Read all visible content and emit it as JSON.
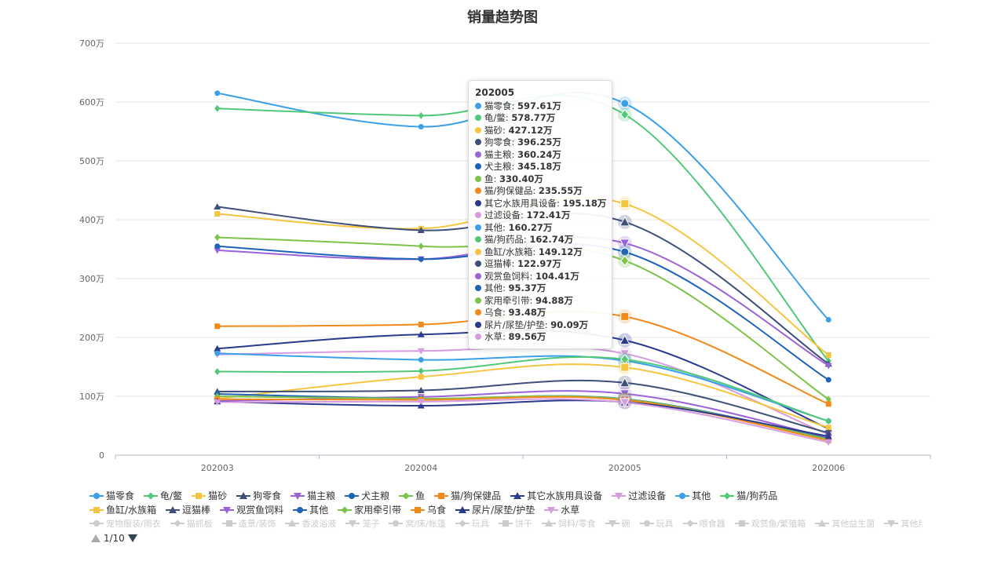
{
  "chart_data": {
    "type": "line",
    "title": "销量趋势图",
    "x": [
      "202003",
      "202004",
      "202005",
      "202006"
    ],
    "y_ticks": [
      "0",
      "100万",
      "200万",
      "300万",
      "400万",
      "500万",
      "600万",
      "700万"
    ],
    "ylim": [
      0,
      700
    ],
    "unit": "万",
    "grid": true,
    "smooth": true,
    "series": [
      {
        "name": "猫零食",
        "color": "#3ba0e8",
        "marker": "circle",
        "values": [
          615,
          558,
          597.61,
          230
        ]
      },
      {
        "name": "龟/鳖",
        "color": "#50c878",
        "marker": "diamond",
        "values": [
          589,
          577,
          578.77,
          160
        ]
      },
      {
        "name": "猫砂",
        "color": "#f5c542",
        "marker": "square",
        "values": [
          410,
          385,
          427.12,
          170
        ]
      },
      {
        "name": "狗零食",
        "color": "#3d4f7a",
        "marker": "triangle",
        "values": [
          422,
          382,
          396.25,
          155
        ]
      },
      {
        "name": "猫主粮",
        "color": "#9a63d8",
        "marker": "triangle-down",
        "values": [
          348,
          333,
          360.24,
          152
        ]
      },
      {
        "name": "犬主粮",
        "color": "#1e63b8",
        "marker": "circle",
        "values": [
          355,
          333,
          345.18,
          128
        ]
      },
      {
        "name": "鱼",
        "color": "#7bc34a",
        "marker": "diamond",
        "values": [
          370,
          355,
          330.4,
          95
        ]
      },
      {
        "name": "猫/狗保健品",
        "color": "#f28a1b",
        "marker": "square",
        "values": [
          219,
          222,
          235.55,
          87
        ]
      },
      {
        "name": "其它水族用具设备",
        "color": "#2a3a8c",
        "marker": "triangle",
        "values": [
          181,
          205,
          195.18,
          45
        ]
      },
      {
        "name": "过滤设备",
        "color": "#d79be0",
        "marker": "triangle-down",
        "values": [
          171,
          177,
          172.41,
          35
        ]
      },
      {
        "name": "其他",
        "color": "#3ba0e8",
        "marker": "circle",
        "values": [
          173,
          162,
          160.27,
          58
        ]
      },
      {
        "name": "猫/狗药品",
        "color": "#50c878",
        "marker": "diamond",
        "values": [
          142,
          143,
          162.74,
          58
        ]
      },
      {
        "name": "鱼缸/水族箱",
        "color": "#f5c542",
        "marker": "square",
        "values": [
          96,
          133,
          149.12,
          47
        ]
      },
      {
        "name": "逗猫棒",
        "color": "#3d4f7a",
        "marker": "triangle",
        "values": [
          108,
          110,
          122.97,
          38
        ]
      },
      {
        "name": "观赏鱼饲料",
        "color": "#9a63d8",
        "marker": "triangle-down",
        "values": [
          92,
          99,
          104.41,
          30
        ]
      },
      {
        "name": "其他",
        "color": "#1e63b8",
        "marker": "circle",
        "values": [
          104,
          96,
          95.37,
          28
        ]
      },
      {
        "name": "家用牵引带",
        "color": "#7bc34a",
        "marker": "diamond",
        "values": [
          100,
          96,
          94.88,
          27
        ]
      },
      {
        "name": "乌食",
        "color": "#f28a1b",
        "marker": "square",
        "values": [
          95,
          94,
          93.48,
          25
        ]
      },
      {
        "name": "尿片/尿垫/护垫",
        "color": "#2a3a8c",
        "marker": "triangle",
        "values": [
          91,
          84,
          90.09,
          32
        ]
      },
      {
        "name": "水草",
        "color": "#d79be0",
        "marker": "triangle-down",
        "values": [
          90,
          91,
          89.56,
          22
        ]
      }
    ],
    "highlight_index": 2,
    "legend_faded": [
      {
        "name": "宠物服装/雨衣",
        "marker": "circle"
      },
      {
        "name": "猫抓板",
        "marker": "diamond"
      },
      {
        "name": "造景/装饰",
        "marker": "square"
      },
      {
        "name": "香波浴液",
        "marker": "triangle"
      },
      {
        "name": "笼子",
        "marker": "triangle-down"
      },
      {
        "name": "窝/床/帐篷",
        "marker": "circle"
      },
      {
        "name": "玩具",
        "marker": "diamond"
      },
      {
        "name": "饼干",
        "marker": "square"
      },
      {
        "name": "饲料/零食",
        "marker": "triangle"
      },
      {
        "name": "碗",
        "marker": "triangle-down"
      },
      {
        "name": "玩具",
        "marker": "circle"
      },
      {
        "name": "喂食器",
        "marker": "diamond"
      },
      {
        "name": "观赏鱼/繁殖箱",
        "marker": "square"
      },
      {
        "name": "其他益生菌",
        "marker": "triangle"
      },
      {
        "name": "其他用电/器电",
        "marker": "triangle-down"
      }
    ],
    "legend_page": "1/10"
  },
  "tooltip": {
    "title": "202005",
    "rows": [
      {
        "label": "猫零食: ",
        "value": "597.61万",
        "color": "#3ba0e8"
      },
      {
        "label": "龟/鳖: ",
        "value": "578.77万",
        "color": "#50c878"
      },
      {
        "label": "猫砂: ",
        "value": "427.12万",
        "color": "#f5c542"
      },
      {
        "label": "狗零食: ",
        "value": "396.25万",
        "color": "#3d4f7a"
      },
      {
        "label": "猫主粮: ",
        "value": "360.24万",
        "color": "#9a63d8"
      },
      {
        "label": "犬主粮: ",
        "value": "345.18万",
        "color": "#1e63b8"
      },
      {
        "label": "鱼: ",
        "value": "330.40万",
        "color": "#7bc34a"
      },
      {
        "label": "猫/狗保健品: ",
        "value": "235.55万",
        "color": "#f28a1b"
      },
      {
        "label": "其它水族用具设备: ",
        "value": "195.18万",
        "color": "#2a3a8c"
      },
      {
        "label": "过滤设备: ",
        "value": "172.41万",
        "color": "#d79be0"
      },
      {
        "label": "其他: ",
        "value": "160.27万",
        "color": "#3ba0e8"
      },
      {
        "label": "猫/狗药品: ",
        "value": "162.74万",
        "color": "#50c878"
      },
      {
        "label": "鱼缸/水族箱: ",
        "value": "149.12万",
        "color": "#f5c542"
      },
      {
        "label": "逗猫棒: ",
        "value": "122.97万",
        "color": "#3d4f7a"
      },
      {
        "label": "观赏鱼饲料: ",
        "value": "104.41万",
        "color": "#9a63d8"
      },
      {
        "label": "其他: ",
        "value": "95.37万",
        "color": "#1e63b8"
      },
      {
        "label": "家用牵引带: ",
        "value": "94.88万",
        "color": "#7bc34a"
      },
      {
        "label": "乌食: ",
        "value": "93.48万",
        "color": "#f28a1b"
      },
      {
        "label": "尿片/尿垫/护垫: ",
        "value": "90.09万",
        "color": "#2a3a8c"
      },
      {
        "label": "水草: ",
        "value": "89.56万",
        "color": "#d79be0"
      }
    ]
  }
}
